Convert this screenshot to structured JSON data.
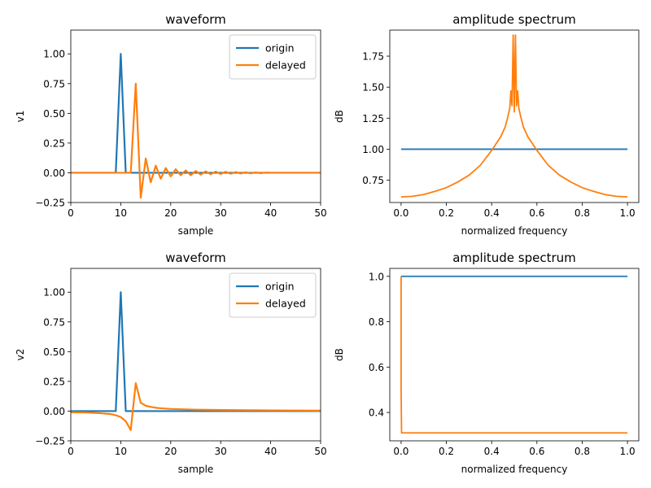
{
  "chart_data": [
    {
      "type": "line",
      "title": "waveform",
      "xlabel": "sample",
      "ylabel": "v1",
      "xlim": [
        0,
        50
      ],
      "ylim": [
        -0.25,
        1.2
      ],
      "xticks": [
        0,
        10,
        20,
        30,
        40,
        50
      ],
      "yticks": [
        -0.25,
        0.0,
        0.25,
        0.5,
        0.75,
        1.0
      ],
      "xtick_labels": [
        "0",
        "10",
        "20",
        "30",
        "40",
        "50"
      ],
      "ytick_labels": [
        "−0.25",
        "0.00",
        "0.25",
        "0.50",
        "0.75",
        "1.00"
      ],
      "legend": "top-right",
      "series": [
        {
          "name": "origin",
          "color": "#1f77b4",
          "x": [
            0,
            9,
            10,
            11,
            50
          ],
          "y": [
            0,
            0,
            1.0,
            0,
            0
          ]
        },
        {
          "name": "delayed",
          "color": "#ff7f0e",
          "x": [
            0,
            12,
            13,
            14,
            15,
            16,
            17,
            18,
            19,
            20,
            21,
            22,
            23,
            24,
            25,
            26,
            27,
            28,
            29,
            30,
            31,
            32,
            33,
            34,
            35,
            36,
            37,
            38,
            39,
            40,
            50
          ],
          "y": [
            0,
            0,
            0.75,
            -0.21,
            0.12,
            -0.08,
            0.06,
            -0.05,
            0.04,
            -0.03,
            0.03,
            -0.02,
            0.02,
            -0.02,
            0.015,
            -0.015,
            0.012,
            -0.012,
            0.01,
            -0.01,
            0.008,
            -0.008,
            0.006,
            -0.006,
            0.004,
            -0.004,
            0.003,
            -0.003,
            0.002,
            0,
            0
          ]
        }
      ]
    },
    {
      "type": "line",
      "title": "amplitude spectrum",
      "xlabel": "normalized frequency",
      "ylabel": "dB",
      "xlim": [
        -0.05,
        1.05
      ],
      "ylim": [
        0.57,
        1.96
      ],
      "xticks": [
        0.0,
        0.2,
        0.4,
        0.6,
        0.8,
        1.0
      ],
      "yticks": [
        0.75,
        1.0,
        1.25,
        1.5,
        1.75
      ],
      "xtick_labels": [
        "0.0",
        "0.2",
        "0.4",
        "0.6",
        "0.8",
        "1.0"
      ],
      "ytick_labels": [
        "0.75",
        "1.00",
        "1.25",
        "1.50",
        "1.75"
      ],
      "series": [
        {
          "color": "#1f77b4",
          "x": [
            0.0,
            1.0
          ],
          "y": [
            1.0,
            1.0
          ]
        },
        {
          "color": "#ff7f0e",
          "x": [
            0.0,
            0.05,
            0.1,
            0.15,
            0.2,
            0.25,
            0.3,
            0.35,
            0.4,
            0.44,
            0.46,
            0.47,
            0.48,
            0.485,
            0.49,
            0.495,
            0.5,
            0.505,
            0.51,
            0.515,
            0.52,
            0.53,
            0.54,
            0.56,
            0.6,
            0.65,
            0.7,
            0.75,
            0.8,
            0.85,
            0.9,
            0.95,
            1.0
          ],
          "y": [
            0.615,
            0.62,
            0.635,
            0.66,
            0.69,
            0.735,
            0.79,
            0.87,
            0.99,
            1.1,
            1.18,
            1.25,
            1.33,
            1.47,
            1.35,
            1.92,
            1.3,
            1.92,
            1.35,
            1.47,
            1.33,
            1.25,
            1.18,
            1.1,
            0.99,
            0.87,
            0.79,
            0.735,
            0.69,
            0.66,
            0.635,
            0.62,
            0.615
          ]
        }
      ]
    },
    {
      "type": "line",
      "title": "waveform",
      "xlabel": "sample",
      "ylabel": "v2",
      "xlim": [
        0,
        50
      ],
      "ylim": [
        -0.25,
        1.2
      ],
      "xticks": [
        0,
        10,
        20,
        30,
        40,
        50
      ],
      "yticks": [
        -0.25,
        0.0,
        0.25,
        0.5,
        0.75,
        1.0
      ],
      "xtick_labels": [
        "0",
        "10",
        "20",
        "30",
        "40",
        "50"
      ],
      "ytick_labels": [
        "−0.25",
        "0.00",
        "0.25",
        "0.50",
        "0.75",
        "1.00"
      ],
      "legend": "top-right",
      "series": [
        {
          "name": "origin",
          "color": "#1f77b4",
          "x": [
            0,
            9,
            10,
            11,
            50
          ],
          "y": [
            0,
            0,
            1.0,
            0,
            0
          ]
        },
        {
          "name": "delayed",
          "color": "#ff7f0e",
          "x": [
            0,
            3,
            6,
            8,
            9,
            10,
            11,
            12,
            13,
            14,
            15,
            16,
            17,
            18,
            20,
            25,
            30,
            40,
            50
          ],
          "y": [
            -0.01,
            -0.012,
            -0.018,
            -0.025,
            -0.035,
            -0.05,
            -0.085,
            -0.16,
            0.235,
            0.07,
            0.045,
            0.035,
            0.028,
            0.024,
            0.018,
            0.012,
            0.009,
            0.006,
            0.004
          ]
        }
      ]
    },
    {
      "type": "line",
      "title": "amplitude spectrum",
      "xlabel": "normalized frequency",
      "ylabel": "dB",
      "xlim": [
        -0.05,
        1.05
      ],
      "ylim": [
        0.275,
        1.035
      ],
      "xticks": [
        0.0,
        0.2,
        0.4,
        0.6,
        0.8,
        1.0
      ],
      "yticks": [
        0.4,
        0.6,
        0.8,
        1.0
      ],
      "xtick_labels": [
        "0.0",
        "0.2",
        "0.4",
        "0.6",
        "0.8",
        "1.0"
      ],
      "ytick_labels": [
        "0.4",
        "0.6",
        "0.8",
        "1.0"
      ],
      "series": [
        {
          "color": "#1f77b4",
          "x": [
            0.0,
            1.0
          ],
          "y": [
            1.0,
            1.0
          ]
        },
        {
          "color": "#ff7f0e",
          "x": [
            0.0,
            0.0,
            0.002,
            1.0
          ],
          "y": [
            1.0,
            0.5,
            0.31,
            0.31
          ]
        }
      ]
    }
  ]
}
